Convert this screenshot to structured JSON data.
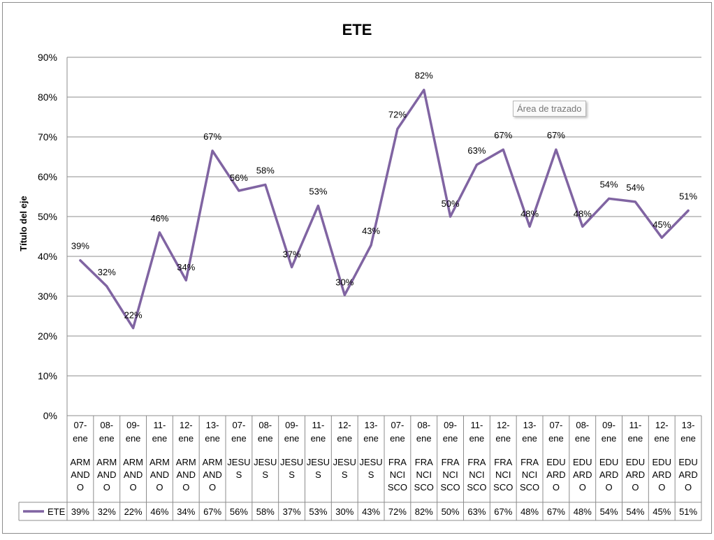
{
  "chart_data": {
    "type": "line",
    "title": "ETE",
    "ylabel": "Título del eje",
    "ylim": [
      0,
      0.9
    ],
    "yticks": [
      "0%",
      "10%",
      "20%",
      "30%",
      "40%",
      "50%",
      "60%",
      "70%",
      "80%",
      "90%"
    ],
    "grid": true,
    "legend_position": "bottom-left (data table)",
    "categories": [
      {
        "date": "07-ene",
        "name": "ARMANDO"
      },
      {
        "date": "08-ene",
        "name": "ARMANDO"
      },
      {
        "date": "09-ene",
        "name": "ARMANDO"
      },
      {
        "date": "11-ene",
        "name": "ARMANDO"
      },
      {
        "date": "12-ene",
        "name": "ARMANDO"
      },
      {
        "date": "13-ene",
        "name": "ARMANDO"
      },
      {
        "date": "07-ene",
        "name": "JESUS"
      },
      {
        "date": "08-ene",
        "name": "JESUS"
      },
      {
        "date": "09-ene",
        "name": "JESUS"
      },
      {
        "date": "11-ene",
        "name": "JESUS"
      },
      {
        "date": "12-ene",
        "name": "JESUS"
      },
      {
        "date": "13-ene",
        "name": "JESUS"
      },
      {
        "date": "07-ene",
        "name": "FRANCISCO"
      },
      {
        "date": "08-ene",
        "name": "FRANCISCO"
      },
      {
        "date": "09-ene",
        "name": "FRANCISCO"
      },
      {
        "date": "11-ene",
        "name": "FRANCISCO"
      },
      {
        "date": "12-ene",
        "name": "FRANCISCO"
      },
      {
        "date": "13-ene",
        "name": "FRANCISCO"
      },
      {
        "date": "07-ene",
        "name": "EDUARDO"
      },
      {
        "date": "08-ene",
        "name": "EDUARDO"
      },
      {
        "date": "09-ene",
        "name": "EDUARDO"
      },
      {
        "date": "11-ene",
        "name": "EDUARDO"
      },
      {
        "date": "12-ene",
        "name": "EDUARDO"
      },
      {
        "date": "13-ene",
        "name": "EDUARDO"
      }
    ],
    "series": [
      {
        "name": "ETE",
        "color": "#8064a2",
        "values": [
          0.39,
          0.325,
          0.22,
          0.46,
          0.34,
          0.665,
          0.565,
          0.58,
          0.373,
          0.527,
          0.303,
          0.428,
          0.72,
          0.818,
          0.5,
          0.63,
          0.668,
          0.475,
          0.668,
          0.475,
          0.545,
          0.537,
          0.447,
          0.515
        ],
        "labels": [
          "39%",
          "32%",
          "22%",
          "46%",
          "34%",
          "67%",
          "56%",
          "58%",
          "37%",
          "53%",
          "30%",
          "43%",
          "72%",
          "82%",
          "50%",
          "63%",
          "67%",
          "48%",
          "67%",
          "48%",
          "54%",
          "54%",
          "45%",
          "51%"
        ]
      }
    ]
  },
  "tooltip": "Área de trazado"
}
